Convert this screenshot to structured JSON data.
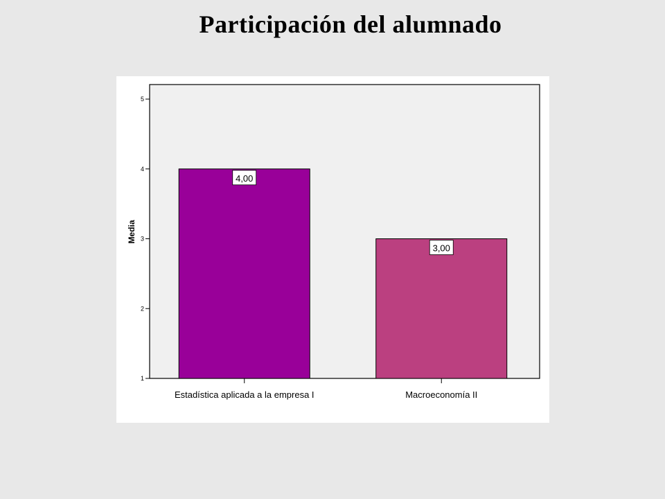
{
  "slide": {
    "title": "Participación del alumnado"
  },
  "chart_data": {
    "type": "bar",
    "title": "",
    "xlabel": "",
    "ylabel": "Media",
    "categories": [
      "Estadística aplicada a la empresa I",
      "Macroeconomía II"
    ],
    "values": [
      4.0,
      3.0
    ],
    "data_labels": [
      "4,00",
      "3,00"
    ],
    "ylim": [
      1,
      5
    ],
    "yticks": [
      1,
      2,
      3,
      4,
      5
    ],
    "ytick_labels": [
      "1",
      "2",
      "3",
      "4",
      "5"
    ],
    "bar_colors": [
      "#990099",
      "#bb4080"
    ],
    "plot_background": "#f0f0f0",
    "grid": false,
    "legend": "none"
  }
}
